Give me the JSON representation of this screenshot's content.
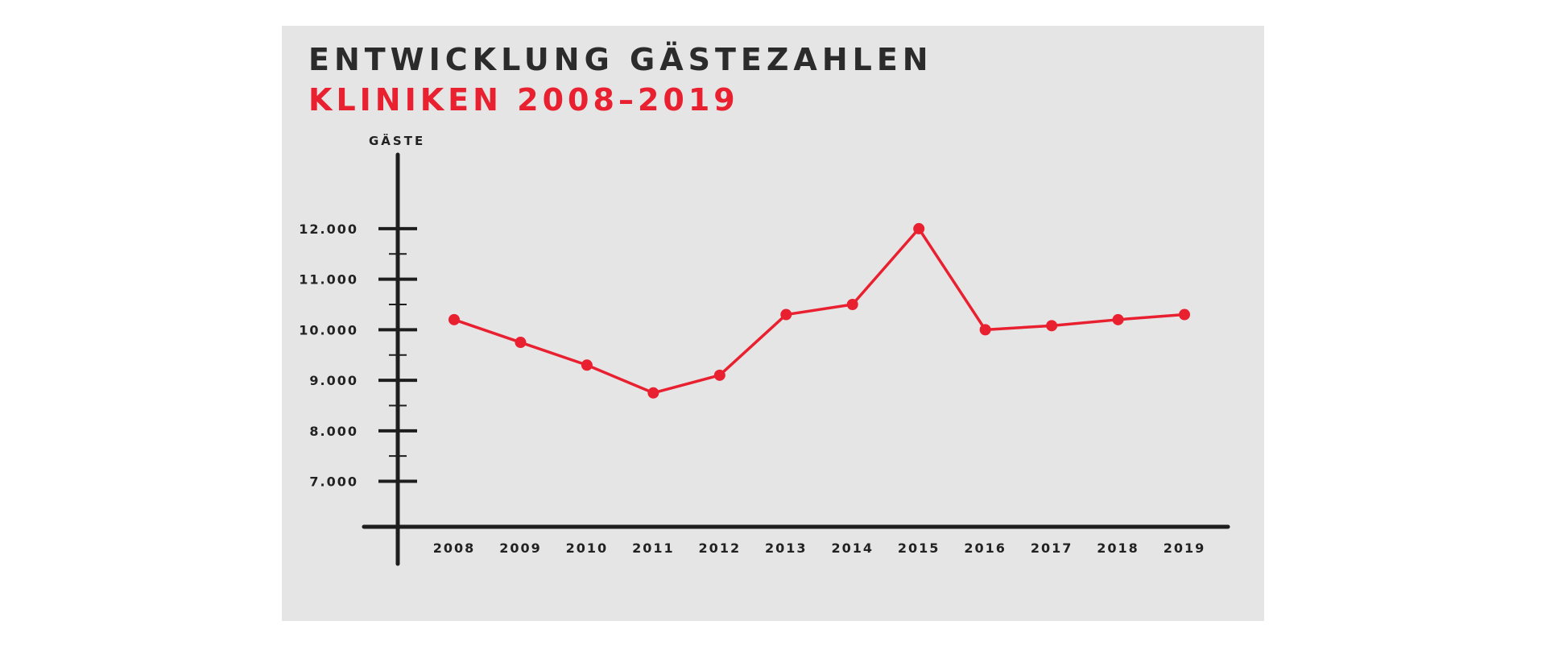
{
  "colors": {
    "panel_background": "#e5e5e5",
    "title": "#2b2b2b",
    "accent": "#e8202f",
    "axis": "#1e1e1e"
  },
  "chart_data": {
    "type": "line",
    "title": "ENTWICKLUNG GÄSTEZAHLEN",
    "subtitle": "KLINIKEN 2008–2019",
    "ylabel": "GÄSTE",
    "xlabel": "",
    "categories": [
      "2008",
      "2009",
      "2010",
      "2011",
      "2012",
      "2013",
      "2014",
      "2015",
      "2016",
      "2017",
      "2018",
      "2019"
    ],
    "series": [
      {
        "values": [
          10200,
          9750,
          9300,
          8750,
          9100,
          10300,
          10500,
          12000,
          10000,
          10080,
          10200,
          10300
        ]
      }
    ],
    "ylim": [
      6100,
      12700
    ],
    "yticks": [
      7000,
      8000,
      9000,
      10000,
      11000,
      12000
    ],
    "ytick_labels": [
      "7.000",
      "8.000",
      "9.000",
      "10.000",
      "11.000",
      "12.000"
    ],
    "minor_ticks": [
      7500,
      8500,
      9500,
      10500,
      11500
    ],
    "grid": false,
    "legend": "none"
  }
}
